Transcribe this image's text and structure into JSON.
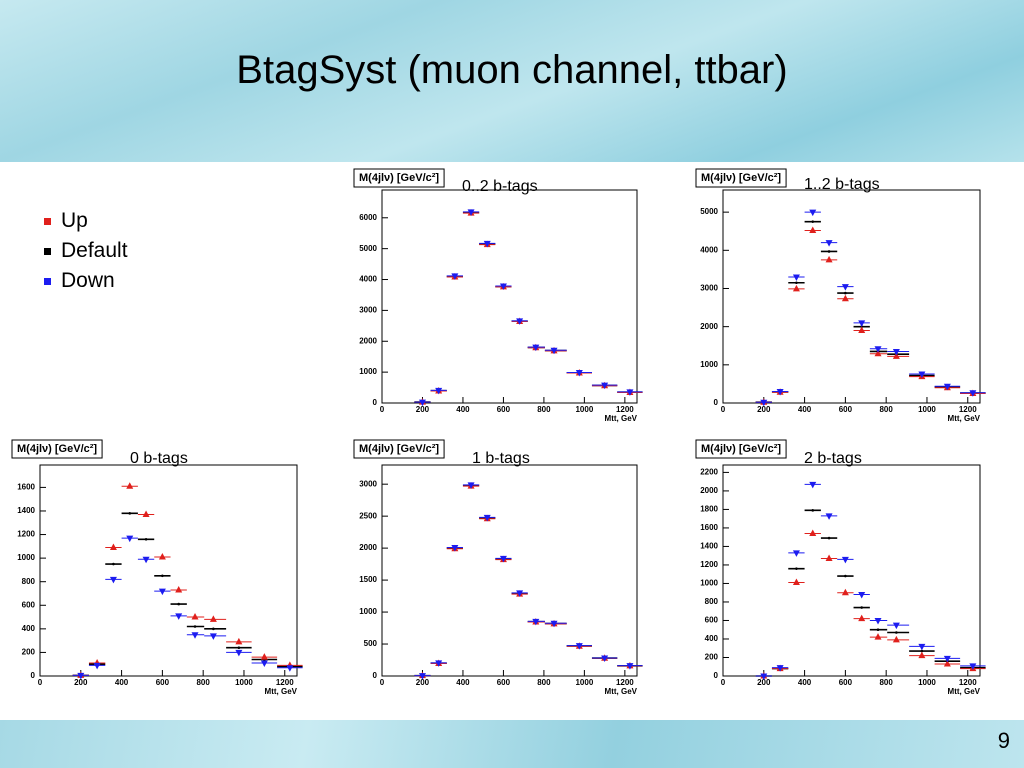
{
  "title": "BtagSyst (muon channel, ttbar)",
  "page_number": "9",
  "chart_data": [
    {
      "type": "scatter",
      "title": "M(4jlν) [GeV/c²]",
      "annotation": "0..2 b-tags",
      "x_label": "Mtt, GeV",
      "x": [
        200,
        280,
        360,
        440,
        520,
        600,
        680,
        760,
        850,
        975,
        1100,
        1225
      ],
      "series": [
        {
          "name": "Up",
          "color": "#e0201c",
          "values": [
            30,
            390,
            4080,
            6150,
            5130,
            3760,
            2640,
            1790,
            1690,
            970,
            560,
            340
          ]
        },
        {
          "name": "Default",
          "color": "#000000",
          "values": [
            30,
            400,
            4100,
            6170,
            5150,
            3770,
            2650,
            1800,
            1700,
            980,
            570,
            350
          ]
        },
        {
          "name": "Down",
          "color": "#1c1cf0",
          "values": [
            30,
            410,
            4120,
            6190,
            5170,
            3790,
            2660,
            1810,
            1710,
            990,
            580,
            360
          ]
        }
      ],
      "xlim": [
        0,
        1260
      ],
      "ylim": [
        0,
        6900
      ],
      "xticks": [
        0,
        200,
        400,
        600,
        800,
        1000,
        1200
      ],
      "yticks": [
        0,
        1000,
        2000,
        3000,
        4000,
        5000,
        6000
      ]
    },
    {
      "type": "scatter",
      "title": "M(4jlν) [GeV/c²]",
      "annotation": "1..2 b-tags",
      "x_label": "Mtt, GeV",
      "x": [
        200,
        280,
        360,
        440,
        520,
        600,
        680,
        760,
        850,
        975,
        1100,
        1225
      ],
      "series": [
        {
          "color": "#e0201c",
          "values": [
            20,
            280,
            2990,
            4520,
            3750,
            2730,
            1900,
            1290,
            1220,
            690,
            400,
            250
          ]
        },
        {
          "color": "#000000",
          "values": [
            20,
            290,
            3150,
            4750,
            3970,
            2880,
            2000,
            1350,
            1280,
            720,
            420,
            260
          ]
        },
        {
          "color": "#1c1cf0",
          "values": [
            20,
            300,
            3300,
            5000,
            4200,
            3050,
            2100,
            1420,
            1350,
            760,
            440,
            270
          ]
        }
      ],
      "xlim": [
        0,
        1260
      ],
      "ylim": [
        0,
        5580
      ],
      "xticks": [
        0,
        200,
        400,
        600,
        800,
        1000,
        1200
      ],
      "yticks": [
        0,
        1000,
        2000,
        3000,
        4000,
        5000
      ]
    },
    {
      "type": "scatter",
      "title": "M(4jlν) [GeV/c²]",
      "annotation": "0 b-tags",
      "x_label": "Mtt, GeV",
      "x": [
        200,
        280,
        360,
        440,
        520,
        600,
        680,
        760,
        850,
        975,
        1100,
        1225
      ],
      "series": [
        {
          "color": "#e0201c",
          "values": [
            5,
            110,
            1090,
            1610,
            1370,
            1010,
            730,
            500,
            480,
            290,
            160,
            90
          ]
        },
        {
          "color": "#000000",
          "values": [
            5,
            100,
            950,
            1380,
            1160,
            850,
            610,
            420,
            400,
            240,
            140,
            80
          ]
        },
        {
          "color": "#1c1cf0",
          "values": [
            5,
            90,
            820,
            1170,
            990,
            720,
            510,
            350,
            340,
            200,
            110,
            70
          ]
        }
      ],
      "xlim": [
        0,
        1260
      ],
      "ylim": [
        0,
        1790
      ],
      "xticks": [
        0,
        200,
        400,
        600,
        800,
        1000,
        1200
      ],
      "yticks": [
        0,
        200,
        400,
        600,
        800,
        1000,
        1200,
        1400,
        1600
      ]
    },
    {
      "type": "scatter",
      "title": "M(4jlν) [GeV/c²]",
      "annotation": "1 b-tags",
      "x_label": "Mtt, GeV",
      "x": [
        200,
        280,
        360,
        440,
        520,
        600,
        680,
        760,
        850,
        975,
        1100,
        1225
      ],
      "series": [
        {
          "color": "#e0201c",
          "values": [
            5,
            195,
            1990,
            2970,
            2460,
            1820,
            1280,
            845,
            815,
            465,
            278,
            158
          ]
        },
        {
          "color": "#000000",
          "values": [
            5,
            200,
            2000,
            2980,
            2470,
            1830,
            1290,
            850,
            820,
            470,
            280,
            160
          ]
        },
        {
          "color": "#1c1cf0",
          "values": [
            5,
            205,
            2010,
            2990,
            2480,
            1840,
            1300,
            855,
            825,
            475,
            282,
            162
          ]
        }
      ],
      "xlim": [
        0,
        1260
      ],
      "ylim": [
        0,
        3300
      ],
      "xticks": [
        0,
        200,
        400,
        600,
        800,
        1000,
        1200
      ],
      "yticks": [
        0,
        500,
        1000,
        1500,
        2000,
        2500,
        3000
      ]
    },
    {
      "type": "scatter",
      "title": "M(4jlν) [GeV/c²]",
      "annotation": "2 b-tags",
      "x_label": "Mtt, GeV",
      "x": [
        200,
        280,
        360,
        440,
        520,
        600,
        680,
        760,
        850,
        975,
        1100,
        1225
      ],
      "series": [
        {
          "color": "#e0201c",
          "values": [
            0,
            80,
            1010,
            1540,
            1270,
            900,
            620,
            420,
            390,
            220,
            130,
            80
          ]
        },
        {
          "color": "#000000",
          "values": [
            0,
            80,
            1160,
            1790,
            1490,
            1080,
            740,
            500,
            470,
            270,
            160,
            90
          ]
        },
        {
          "color": "#1c1cf0",
          "values": [
            0,
            90,
            1330,
            2070,
            1730,
            1260,
            880,
            600,
            550,
            320,
            190,
            110
          ]
        }
      ],
      "xlim": [
        0,
        1260
      ],
      "ylim": [
        0,
        2280
      ],
      "xticks": [
        0,
        200,
        400,
        600,
        800,
        1000,
        1200
      ],
      "yticks": [
        0,
        200,
        400,
        600,
        800,
        1000,
        1200,
        1400,
        1600,
        1800,
        2000,
        2200
      ]
    }
  ]
}
